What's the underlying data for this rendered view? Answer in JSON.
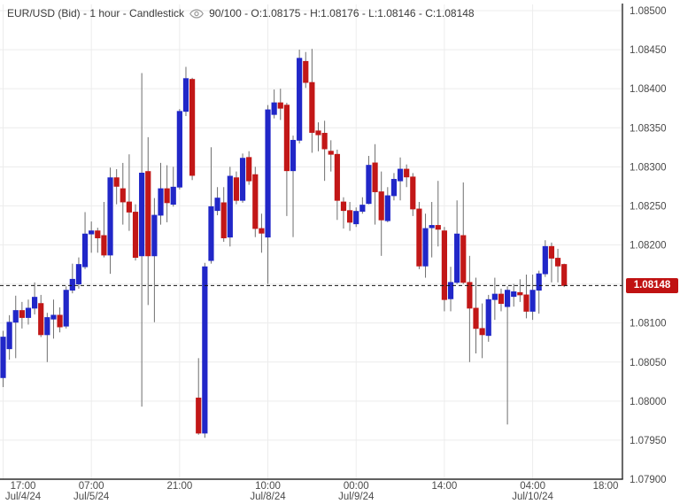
{
  "title": {
    "left": "EUR/USD (Bid) - 1 hour - Candlestick",
    "right": "90/100 - O:1.08175 - H:1.08176 - L:1.08146 - C:1.08148",
    "visible_bars": "90/100",
    "open": "1.08175",
    "high": "1.08176",
    "low": "1.08146",
    "close": "1.08148"
  },
  "price_axis": {
    "labels": [
      "1.08500",
      "1.08450",
      "1.08400",
      "1.08350",
      "1.08300",
      "1.08250",
      "1.08200",
      "1.08150",
      "1.08100",
      "1.08050",
      "1.08000",
      "1.07950",
      "1.07900"
    ],
    "last_price_label": "1.08148"
  },
  "time_axis": {
    "ticks": [
      {
        "time": "17:00",
        "date": "Jul/4/24",
        "bar_index": 0
      },
      {
        "time": "07:00",
        "date": "Jul/5/24",
        "bar_index": 14
      },
      {
        "time": "21:00",
        "date": "",
        "bar_index": 28
      },
      {
        "time": "10:00",
        "date": "Jul/8/24",
        "bar_index": 42
      },
      {
        "time": "00:00",
        "date": "Jul/9/24",
        "bar_index": 56
      },
      {
        "time": "14:00",
        "date": "",
        "bar_index": 70
      },
      {
        "time": "04:00",
        "date": "Jul/10/24",
        "bar_index": 84
      },
      {
        "time": "18:00",
        "date": "",
        "bar_index": 98
      }
    ]
  },
  "colors": {
    "up": "#2127c8",
    "down": "#c21717",
    "wick": "#6e6e6e",
    "grid": "#ececec",
    "axis": "#2b2b2b",
    "label": "#4a4a4a",
    "badge_bg": "#c01212",
    "badge_text": "#ffffff",
    "last_price_line": "#111111"
  },
  "chart_data": {
    "type": "candlestick",
    "instrument": "EUR/USD (Bid)",
    "interval": "1 hour",
    "price_min": 1.079,
    "price_max": 1.085,
    "price_step": 0.0005,
    "last_price": 1.08148,
    "candles_ohlc": [
      [
        1.0803,
        1.0809,
        1.08018,
        1.08082
      ],
      [
        1.08067,
        1.0811,
        1.08053,
        1.08101
      ],
      [
        1.08101,
        1.08135,
        1.08055,
        1.08116
      ],
      [
        1.08116,
        1.08127,
        1.08093,
        1.08107
      ],
      [
        1.08107,
        1.0813,
        1.08098,
        1.08119
      ],
      [
        1.08119,
        1.08152,
        1.08111,
        1.08133
      ],
      [
        1.08125,
        1.08136,
        1.08082,
        1.08085
      ],
      [
        1.08085,
        1.08113,
        1.0805,
        1.08107
      ],
      [
        1.08105,
        1.0813,
        1.0808,
        1.0811
      ],
      [
        1.0811,
        1.0812,
        1.08088,
        1.08095
      ],
      [
        1.08096,
        1.08147,
        1.08093,
        1.08142
      ],
      [
        1.08142,
        1.08176,
        1.08138,
        1.08156
      ],
      [
        1.0815,
        1.08184,
        1.08144,
        1.08175
      ],
      [
        1.08172,
        1.08242,
        1.08169,
        1.08214
      ],
      [
        1.08214,
        1.0823,
        1.0819,
        1.08218
      ],
      [
        1.08218,
        1.08222,
        1.0819,
        1.08209
      ],
      [
        1.08212,
        1.08255,
        1.08184,
        1.08187
      ],
      [
        1.08187,
        1.08299,
        1.08163,
        1.08286
      ],
      [
        1.08286,
        1.08297,
        1.08252,
        1.08275
      ],
      [
        1.08272,
        1.08305,
        1.08226,
        1.08255
      ],
      [
        1.08255,
        1.08316,
        1.08218,
        1.08242
      ],
      [
        1.08242,
        1.08252,
        1.0818,
        1.08184
      ],
      [
        1.08186,
        1.0842,
        1.07993,
        1.08292
      ],
      [
        1.08294,
        1.08338,
        1.08123,
        1.08186
      ],
      [
        1.08186,
        1.0826,
        1.08101,
        1.08238
      ],
      [
        1.08238,
        1.08305,
        1.08226,
        1.08272
      ],
      [
        1.08272,
        1.08302,
        1.08229,
        1.08254
      ],
      [
        1.08252,
        1.083,
        1.08249,
        1.08274
      ],
      [
        1.08274,
        1.08374,
        1.08271,
        1.08371
      ],
      [
        1.08371,
        1.08428,
        1.08365,
        1.08413
      ],
      [
        1.08412,
        1.08414,
        1.08283,
        1.08289
      ],
      [
        1.08004,
        1.08055,
        1.07957,
        1.07959
      ],
      [
        1.07959,
        1.08177,
        1.07953,
        1.08172
      ],
      [
        1.0818,
        1.08325,
        1.08176,
        1.08249
      ],
      [
        1.08244,
        1.08274,
        1.08238,
        1.0826
      ],
      [
        1.08254,
        1.08274,
        1.08204,
        1.08209
      ],
      [
        1.0821,
        1.083,
        1.08198,
        1.08288
      ],
      [
        1.08286,
        1.08294,
        1.08252,
        1.08257
      ],
      [
        1.08257,
        1.08317,
        1.08254,
        1.08311
      ],
      [
        1.08312,
        1.0832,
        1.08277,
        1.08282
      ],
      [
        1.0829,
        1.083,
        1.0821,
        1.08221
      ],
      [
        1.08221,
        1.0824,
        1.0819,
        1.08215
      ],
      [
        1.0821,
        1.08379,
        1.0815,
        1.08373
      ],
      [
        1.08367,
        1.08399,
        1.08362,
        1.08382
      ],
      [
        1.08382,
        1.084,
        1.0836,
        1.08375
      ],
      [
        1.08379,
        1.08382,
        1.08237,
        1.08295
      ],
      [
        1.08295,
        1.0834,
        1.0821,
        1.08334
      ],
      [
        1.08334,
        1.0845,
        1.0833,
        1.08439
      ],
      [
        1.08435,
        1.08447,
        1.08401,
        1.08408
      ],
      [
        1.08408,
        1.08451,
        1.08318,
        1.08344
      ],
      [
        1.08346,
        1.08357,
        1.0832,
        1.08341
      ],
      [
        1.08343,
        1.08359,
        1.08282,
        1.08323
      ],
      [
        1.0832,
        1.08334,
        1.08294,
        1.08316
      ],
      [
        1.08316,
        1.08322,
        1.08232,
        1.08257
      ],
      [
        1.08255,
        1.08261,
        1.08221,
        1.08244
      ],
      [
        1.08244,
        1.08255,
        1.08218,
        1.08229
      ],
      [
        1.08227,
        1.08248,
        1.08223,
        1.08243
      ],
      [
        1.08243,
        1.08261,
        1.0824,
        1.08251
      ],
      [
        1.08253,
        1.08314,
        1.08252,
        1.08302
      ],
      [
        1.08305,
        1.08329,
        1.08226,
        1.08268
      ],
      [
        1.08268,
        1.08294,
        1.08186,
        1.08232
      ],
      [
        1.08231,
        1.08274,
        1.08229,
        1.08263
      ],
      [
        1.08263,
        1.08292,
        1.08257,
        1.08284
      ],
      [
        1.08282,
        1.08312,
        1.08257,
        1.08297
      ],
      [
        1.08297,
        1.08303,
        1.08274,
        1.08287
      ],
      [
        1.08287,
        1.08292,
        1.08237,
        1.08246
      ],
      [
        1.08246,
        1.08255,
        1.08169,
        1.08173
      ],
      [
        1.08173,
        1.0824,
        1.08158,
        1.08221
      ],
      [
        1.08222,
        1.08255,
        1.08184,
        1.08225
      ],
      [
        1.08225,
        1.08282,
        1.08198,
        1.0822
      ],
      [
        1.08218,
        1.08223,
        1.08115,
        1.0813
      ],
      [
        1.08131,
        1.08172,
        1.08115,
        1.08152
      ],
      [
        1.08152,
        1.08257,
        1.0815,
        1.08214
      ],
      [
        1.08212,
        1.0828,
        1.0815,
        1.08152
      ],
      [
        1.08152,
        1.08186,
        1.0805,
        1.08119
      ],
      [
        1.08119,
        1.08158,
        1.08061,
        1.08093
      ],
      [
        1.08093,
        1.08125,
        1.08055,
        1.08085
      ],
      [
        1.08084,
        1.08136,
        1.08076,
        1.0813
      ],
      [
        1.0813,
        1.08158,
        1.08104,
        1.08137
      ],
      [
        1.08137,
        1.08144,
        1.08115,
        1.08125
      ],
      [
        1.08121,
        1.08147,
        1.0797,
        1.08142
      ],
      [
        1.08134,
        1.0815,
        1.08121,
        1.0814
      ],
      [
        1.08139,
        1.08156,
        1.08127,
        1.08136
      ],
      [
        1.08136,
        1.08162,
        1.08106,
        1.08115
      ],
      [
        1.08115,
        1.08162,
        1.08104,
        1.08142
      ],
      [
        1.08142,
        1.08167,
        1.08112,
        1.08163
      ],
      [
        1.08163,
        1.08206,
        1.08159,
        1.08198
      ],
      [
        1.08198,
        1.08203,
        1.08152,
        1.08183
      ],
      [
        1.08183,
        1.08195,
        1.08152,
        1.08173
      ],
      [
        1.08175,
        1.08176,
        1.08146,
        1.08148
      ]
    ]
  }
}
